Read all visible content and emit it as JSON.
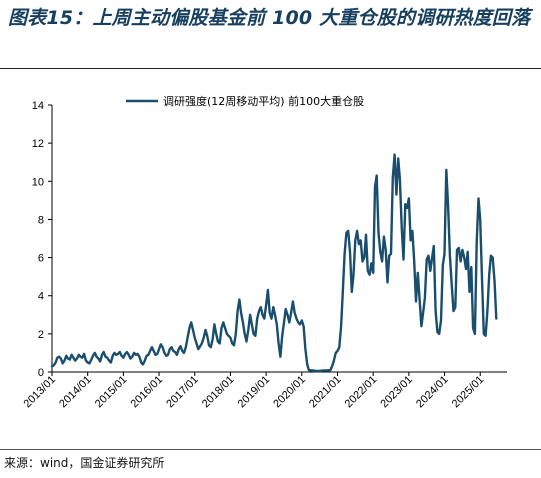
{
  "header": {
    "title": "图表15：上周主动偏股基金前 100 大重仓股的调研热度回落"
  },
  "footer": {
    "source": "来源：wind，国金证券研究所"
  },
  "chart_data": {
    "type": "line",
    "title": "图表15：上周主动偏股基金前 100 大重仓股的调研热度回落",
    "xlabel": "",
    "ylabel": "",
    "ylim": [
      0,
      14
    ],
    "yticks": [
      "0",
      "2",
      "4",
      "6",
      "8",
      "10",
      "12",
      "14"
    ],
    "xlim": [
      2013.0,
      2025.75
    ],
    "xticks": [
      {
        "x": 2013.0,
        "label": "2013/01"
      },
      {
        "x": 2014.0,
        "label": "2014/01"
      },
      {
        "x": 2015.0,
        "label": "2015/01"
      },
      {
        "x": 2016.0,
        "label": "2016/01"
      },
      {
        "x": 2017.0,
        "label": "2017/01"
      },
      {
        "x": 2018.0,
        "label": "2018/01"
      },
      {
        "x": 2019.0,
        "label": "2019/01"
      },
      {
        "x": 2020.0,
        "label": "2020/01"
      },
      {
        "x": 2021.0,
        "label": "2021/01"
      },
      {
        "x": 2022.0,
        "label": "2022/01"
      },
      {
        "x": 2023.0,
        "label": "2023/01"
      },
      {
        "x": 2024.0,
        "label": "2024/01"
      },
      {
        "x": 2025.0,
        "label": "2025/01"
      }
    ],
    "grid": false,
    "legend_position": "top",
    "series": [
      {
        "name": "调研强度(12周移动平均) 前100大重仓股",
        "color": "#1a4e6e",
        "x": [
          2013.0,
          2013.05,
          2013.1,
          2013.15,
          2013.2,
          2013.25,
          2013.3,
          2013.35,
          2013.4,
          2013.45,
          2013.5,
          2013.55,
          2013.6,
          2013.65,
          2013.7,
          2013.75,
          2013.8,
          2013.85,
          2013.9,
          2013.95,
          2014.0,
          2014.05,
          2014.1,
          2014.15,
          2014.2,
          2014.25,
          2014.3,
          2014.35,
          2014.4,
          2014.45,
          2014.5,
          2014.55,
          2014.6,
          2014.65,
          2014.7,
          2014.75,
          2014.8,
          2014.85,
          2014.9,
          2014.95,
          2015.0,
          2015.05,
          2015.1,
          2015.15,
          2015.2,
          2015.25,
          2015.3,
          2015.35,
          2015.4,
          2015.45,
          2015.5,
          2015.55,
          2015.6,
          2015.65,
          2015.7,
          2015.75,
          2015.8,
          2015.85,
          2015.9,
          2015.95,
          2016.0,
          2016.05,
          2016.1,
          2016.15,
          2016.2,
          2016.25,
          2016.3,
          2016.35,
          2016.4,
          2016.45,
          2016.5,
          2016.55,
          2016.6,
          2016.65,
          2016.7,
          2016.75,
          2016.8,
          2016.85,
          2016.9,
          2016.95,
          2017.0,
          2017.05,
          2017.1,
          2017.15,
          2017.2,
          2017.25,
          2017.3,
          2017.35,
          2017.4,
          2017.45,
          2017.5,
          2017.55,
          2017.6,
          2017.65,
          2017.7,
          2017.75,
          2017.8,
          2017.85,
          2017.9,
          2017.95,
          2018.0,
          2018.05,
          2018.1,
          2018.15,
          2018.2,
          2018.25,
          2018.3,
          2018.35,
          2018.4,
          2018.45,
          2018.5,
          2018.55,
          2018.6,
          2018.65,
          2018.7,
          2018.75,
          2018.8,
          2018.85,
          2018.9,
          2018.95,
          2019.0,
          2019.05,
          2019.1,
          2019.15,
          2019.2,
          2019.25,
          2019.3,
          2019.35,
          2019.4,
          2019.45,
          2019.5,
          2019.55,
          2019.6,
          2019.65,
          2019.7,
          2019.75,
          2019.8,
          2019.85,
          2019.9,
          2019.95,
          2020.0,
          2020.05,
          2020.1,
          2020.15,
          2020.2,
          2020.3,
          2020.4,
          2020.5,
          2020.6,
          2020.7,
          2020.8,
          2020.85,
          2020.9,
          2020.95,
          2021.0,
          2021.05,
          2021.1,
          2021.15,
          2021.2,
          2021.25,
          2021.3,
          2021.35,
          2021.4,
          2021.45,
          2021.5,
          2021.55,
          2021.6,
          2021.65,
          2021.7,
          2021.75,
          2021.8,
          2021.85,
          2021.9,
          2021.95,
          2022.0,
          2022.05,
          2022.1,
          2022.15,
          2022.2,
          2022.25,
          2022.3,
          2022.35,
          2022.4,
          2022.45,
          2022.5,
          2022.55,
          2022.6,
          2022.65,
          2022.7,
          2022.75,
          2022.8,
          2022.85,
          2022.9,
          2022.95,
          2023.0,
          2023.05,
          2023.1,
          2023.15,
          2023.2,
          2023.25,
          2023.3,
          2023.35,
          2023.4,
          2023.45,
          2023.5,
          2023.55,
          2023.6,
          2023.65,
          2023.7,
          2023.75,
          2023.8,
          2023.85,
          2023.9,
          2023.95,
          2024.0,
          2024.05,
          2024.1,
          2024.15,
          2024.2,
          2024.25,
          2024.3,
          2024.35,
          2024.4,
          2024.45,
          2024.5,
          2024.55,
          2024.6,
          2024.65,
          2024.7,
          2024.75,
          2024.8,
          2024.85,
          2024.9,
          2024.95,
          2025.0,
          2025.05,
          2025.1,
          2025.15,
          2025.2,
          2025.25,
          2025.3,
          2025.35,
          2025.4,
          2025.45
        ],
        "values": [
          0.3,
          0.35,
          0.5,
          0.75,
          0.8,
          0.7,
          0.45,
          0.6,
          0.85,
          0.7,
          0.65,
          0.9,
          0.75,
          0.6,
          0.7,
          0.9,
          0.8,
          0.75,
          0.95,
          0.6,
          0.5,
          0.45,
          0.65,
          0.85,
          1.0,
          0.8,
          0.7,
          0.55,
          0.9,
          1.05,
          0.8,
          0.75,
          0.6,
          0.5,
          0.85,
          1.0,
          0.9,
          0.95,
          1.05,
          0.85,
          0.75,
          0.95,
          1.05,
          0.9,
          0.7,
          0.8,
          1.0,
          0.9,
          0.95,
          0.8,
          0.5,
          0.4,
          0.6,
          0.85,
          0.9,
          1.1,
          1.3,
          1.1,
          0.9,
          0.95,
          1.2,
          1.45,
          1.3,
          1.0,
          0.85,
          0.9,
          1.2,
          1.3,
          1.1,
          1.05,
          0.9,
          1.2,
          1.35,
          1.1,
          1.0,
          1.3,
          1.8,
          2.3,
          2.6,
          2.2,
          1.8,
          1.5,
          1.2,
          1.35,
          1.5,
          1.8,
          2.2,
          1.9,
          1.4,
          1.3,
          1.7,
          2.5,
          2.0,
          1.6,
          1.5,
          2.3,
          2.6,
          2.3,
          2.0,
          1.9,
          1.8,
          1.5,
          1.4,
          2.0,
          3.2,
          3.8,
          3.1,
          2.6,
          2.0,
          1.6,
          2.2,
          3.0,
          2.5,
          2.0,
          1.9,
          2.8,
          3.2,
          3.4,
          3.0,
          2.8,
          3.5,
          4.3,
          3.1,
          2.8,
          3.4,
          3.0,
          2.5,
          1.5,
          0.8,
          1.9,
          2.6,
          3.3,
          3.0,
          2.6,
          3.1,
          3.7,
          3.1,
          2.8,
          2.6,
          2.5,
          2.7,
          2.4,
          1.2,
          0.4,
          0.1,
          0.08,
          0.05,
          0.05,
          0.08,
          0.08,
          0.1,
          0.3,
          0.6,
          1.0,
          1.1,
          1.3,
          2.4,
          4.2,
          6.2,
          7.3,
          7.4,
          6.3,
          4.2,
          5.1,
          6.9,
          7.4,
          6.7,
          6.9,
          5.8,
          6.0,
          7.2,
          5.3,
          5.1,
          5.7,
          5.2,
          9.7,
          10.3,
          7.3,
          6.3,
          5.8,
          7.1,
          6.4,
          4.7,
          6.1,
          6.2,
          10.2,
          11.4,
          9.3,
          11.2,
          10.1,
          7.6,
          5.9,
          8.8,
          8.6,
          9.1,
          6.9,
          7.4,
          5.8,
          3.7,
          5.2,
          3.8,
          2.4,
          3.1,
          3.9,
          5.9,
          6.1,
          5.3,
          6.0,
          6.6,
          3.2,
          2.1,
          2.0,
          2.7,
          5.6,
          6.2,
          10.6,
          8.7,
          6.1,
          4.6,
          3.2,
          3.4,
          6.4,
          6.5,
          5.8,
          6.4,
          6.0,
          5.4,
          6.3,
          4.2,
          5.5,
          2.3,
          2.0,
          6.8,
          9.1,
          8.0,
          4.9,
          2.0,
          1.9,
          3.2,
          5.1,
          6.1,
          6.0,
          4.8,
          2.8
        ]
      }
    ]
  }
}
